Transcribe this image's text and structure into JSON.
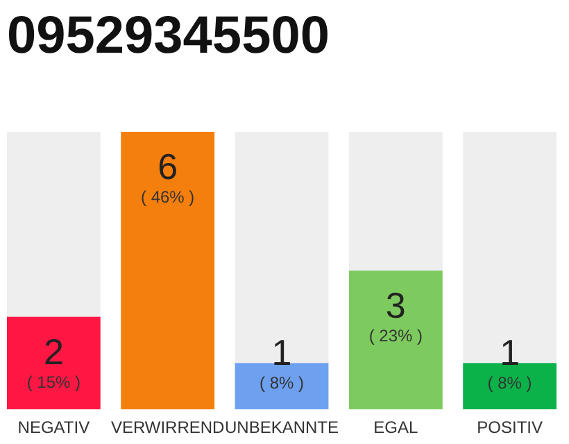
{
  "chart_data": {
    "type": "bar",
    "title": "09529345500",
    "categories": [
      "NEGATIV",
      "VERWIRREND",
      "UNBEKANNTE",
      "EGAL",
      "POSITIV"
    ],
    "values": [
      2,
      6,
      1,
      3,
      1
    ],
    "colors": [
      "#ff1744",
      "#f57f0c",
      "#6ea0f0",
      "#7dcb5f",
      "#0bb24a"
    ],
    "value_labels": [
      "2",
      "6",
      "1",
      "3",
      "1"
    ],
    "annotations": [
      "( 15% )",
      "( 46% )",
      "( 8% )",
      "( 23% )",
      "( 8% )"
    ]
  }
}
